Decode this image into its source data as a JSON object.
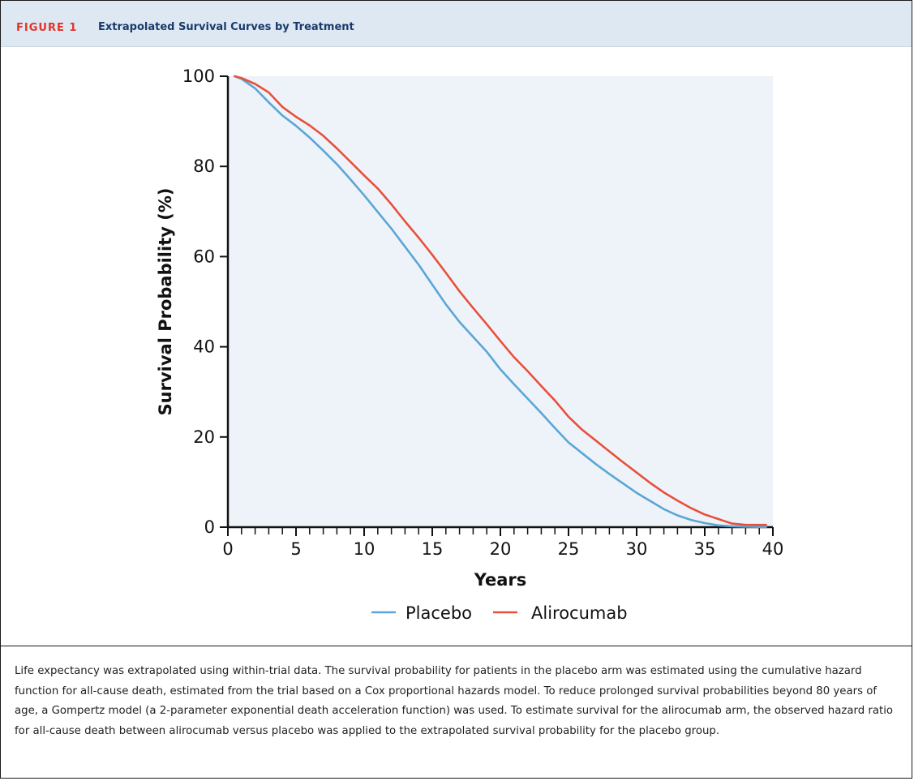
{
  "figure": {
    "label": "FIGURE 1",
    "title": "Extrapolated Survival Curves by Treatment",
    "caption": "Life expectancy was extrapolated using within-trial data. The survival probability for patients in the placebo arm was estimated using the cumulative hazard function for all-cause death, estimated from the trial based on a Cox proportional hazards model. To reduce prolonged survival probabilities beyond 80 years of age, a Gompertz model (a 2-parameter exponential death acceleration function) was used. To estimate survival for the alirocumab arm, the observed hazard ratio for all-cause death between alirocumab versus placebo was applied to the extrapolated survival probability for the placebo group."
  },
  "colors": {
    "header_bg": "#dde8f3",
    "figure_label": "#e2332a",
    "title": "#1a3a6b",
    "plot_bg": "#eef3fa",
    "placebo": "#5aa6d6",
    "alirocumab": "#e8503a"
  },
  "chart_data": {
    "type": "line",
    "xlabel": "Years",
    "ylabel": "Survival Probability (%)",
    "xlim": [
      0,
      40
    ],
    "ylim": [
      0,
      100
    ],
    "xticks": [
      "0",
      "5",
      "10",
      "15",
      "20",
      "25",
      "30",
      "35",
      "40"
    ],
    "yticks": [
      "0",
      "20",
      "40",
      "60",
      "80",
      "100"
    ],
    "grid": false,
    "legend_position": "bottom",
    "series": [
      {
        "name": "Placebo",
        "x": [
          0.5,
          1,
          2,
          3,
          4,
          5,
          6,
          7,
          8,
          9,
          10,
          11,
          12,
          13,
          14,
          15,
          16,
          17,
          18,
          19,
          20,
          21,
          22,
          23,
          24,
          25,
          26,
          27,
          28,
          29,
          30,
          31,
          32,
          33,
          34,
          35,
          36,
          37,
          38,
          39,
          39.5
        ],
        "y": [
          100,
          99.4,
          97.3,
          94.2,
          91.3,
          89.0,
          86.4,
          83.5,
          80.5,
          77.1,
          73.6,
          69.9,
          66.2,
          62.2,
          58.2,
          53.8,
          49.4,
          45.5,
          42.2,
          38.9,
          35.0,
          31.7,
          28.5,
          25.3,
          22.0,
          18.8,
          16.4,
          14.0,
          11.8,
          9.7,
          7.6,
          5.8,
          4.0,
          2.6,
          1.6,
          0.9,
          0.4,
          0.2,
          0.1,
          0.05,
          0.05
        ]
      },
      {
        "name": "Alirocumab",
        "x": [
          0.5,
          1,
          2,
          3,
          4,
          5,
          6,
          7,
          8,
          9,
          10,
          11,
          12,
          13,
          14,
          15,
          16,
          17,
          18,
          19,
          20,
          21,
          22,
          23,
          24,
          25,
          26,
          27,
          28,
          29,
          30,
          31,
          32,
          33,
          34,
          35,
          36,
          37,
          38,
          39,
          39.5
        ],
        "y": [
          100,
          99.6,
          98.3,
          96.4,
          93.2,
          91.0,
          89.1,
          86.8,
          84.0,
          81.0,
          78.0,
          75.1,
          71.6,
          67.8,
          64.2,
          60.4,
          56.4,
          52.3,
          48.6,
          45.0,
          41.3,
          37.7,
          34.6,
          31.3,
          28.1,
          24.5,
          21.6,
          19.2,
          16.8,
          14.4,
          12.1,
          9.8,
          7.7,
          5.9,
          4.2,
          2.8,
          1.8,
          0.8,
          0.5,
          0.5,
          0.5
        ]
      }
    ]
  }
}
